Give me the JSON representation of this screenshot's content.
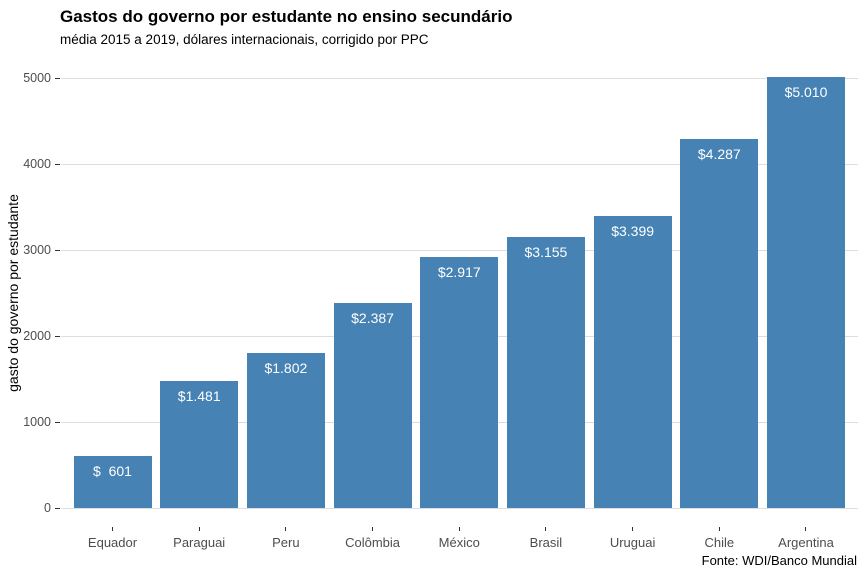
{
  "chart_data": {
    "type": "bar",
    "title": "Gastos do governo por estudante no ensino secundário",
    "subtitle": "média 2015 a 2019, dólares internacionais, corrigido por PPC",
    "caption": "Fonte: WDI/Banco Mundial",
    "xlabel": "",
    "ylabel": "gasto do governo por estudante",
    "categories": [
      "Equador",
      "Paraguai",
      "Peru",
      "Colômbia",
      "México",
      "Brasil",
      "Uruguai",
      "Chile",
      "Argentina"
    ],
    "values": [
      601,
      1481,
      1802,
      2387,
      2917,
      3155,
      3399,
      4287,
      5010
    ],
    "bar_labels": [
      "$  601",
      "$1.481",
      "$1.802",
      "$2.387",
      "$2.917",
      "$3.155",
      "$3.399",
      "$4.287",
      "$5.010"
    ],
    "ylim": [
      0,
      5000
    ],
    "yticks": [
      0,
      1000,
      2000,
      3000,
      4000,
      5000
    ],
    "ytick_labels": [
      "0",
      "1000",
      "2000",
      "3000",
      "4000",
      "5000"
    ],
    "grid": "horizontal-major-only",
    "legend": "none",
    "bar_color": "#4682B4",
    "bar_label_color": "#FFFFFF",
    "gridline_color": "#DDDDDD",
    "tick_mark_color": "#333333",
    "axis_text_color": "#4D4D4D",
    "background_color": "#FFFFFF"
  }
}
